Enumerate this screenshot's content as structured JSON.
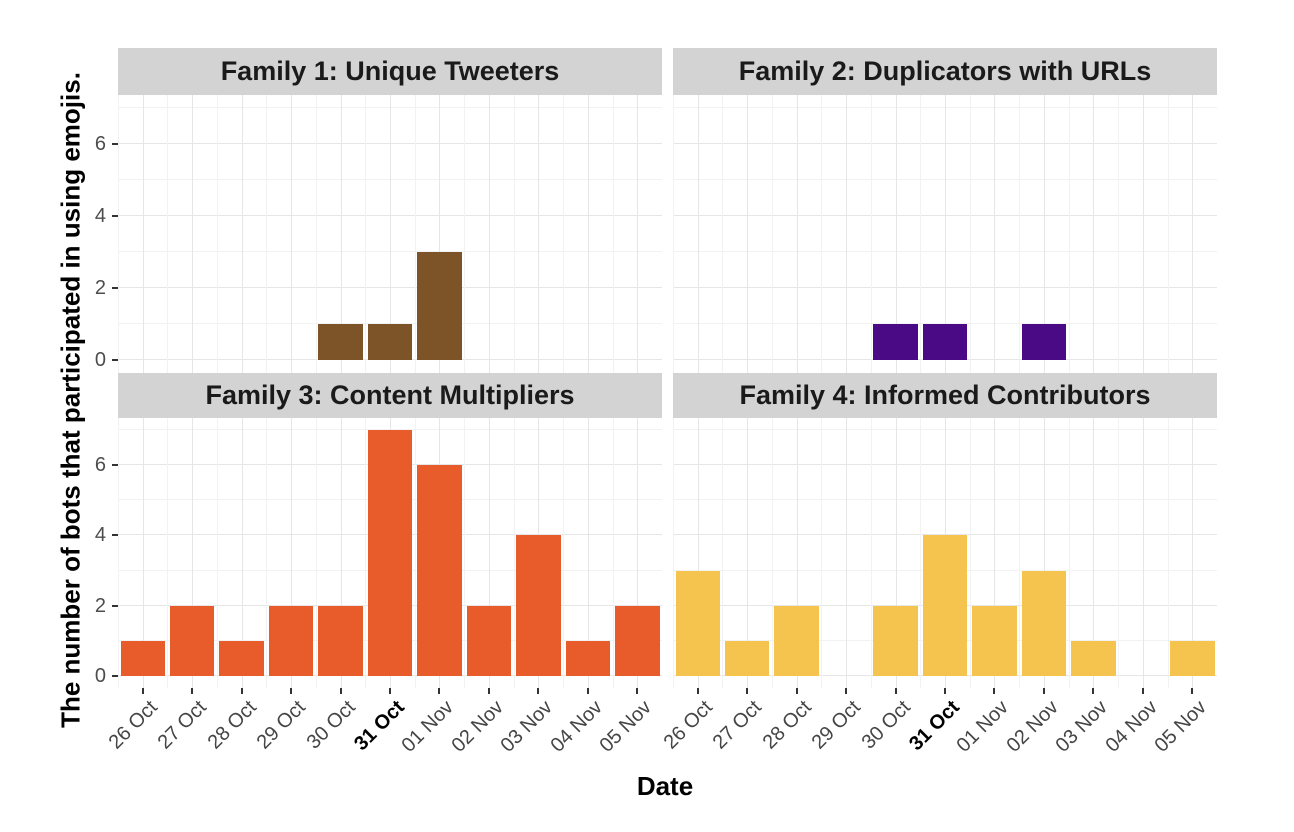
{
  "chart_data": {
    "type": "bar",
    "facet_layout": "2x2",
    "title": "",
    "xlabel": "Date",
    "ylabel": "The number of bots that participated in using emojis.",
    "categories": [
      "26 Oct",
      "27 Oct",
      "28 Oct",
      "29 Oct",
      "30 Oct",
      "31 Oct",
      "01 Nov",
      "02 Nov",
      "03 Nov",
      "04 Nov",
      "05 Nov"
    ],
    "bold_category": "31 Oct",
    "series": [
      {
        "name": "Family 1: Unique Tweeters",
        "color": "#7C5428",
        "values": [
          0,
          0,
          0,
          0,
          1,
          1,
          3,
          0,
          0,
          0,
          0
        ]
      },
      {
        "name": "Family 2: Duplicators with URLs",
        "color": "#4A0A86",
        "values": [
          0,
          0,
          0,
          0,
          1,
          1,
          0,
          1,
          0,
          0,
          0
        ]
      },
      {
        "name": "Family 3: Content Multipliers",
        "color": "#E85C2B",
        "values": [
          1,
          2,
          1,
          2,
          2,
          7,
          6,
          2,
          4,
          1,
          2
        ]
      },
      {
        "name": "Family 4: Informed Contributors",
        "color": "#F4C44F",
        "values": [
          3,
          1,
          2,
          0,
          2,
          4,
          2,
          3,
          1,
          0,
          1
        ]
      }
    ],
    "ylim": [
      0,
      7
    ],
    "yticks": [
      0,
      2,
      4,
      6
    ],
    "ytick_labels": [
      "0",
      "2",
      "4",
      "6"
    ],
    "grid": "major and minor light-gray gridlines on white panels",
    "legend": "none",
    "styles": {
      "strip_bg": "#D3D3D3",
      "strip_text_color": "#1A1A1A",
      "grid_major": "#E6E6E6",
      "grid_minor": "#F2F2F2",
      "y_tick_text_color": "#4D4D4D",
      "x_tick_text_color": "#454545",
      "axis_tick_mark_color": "#333333"
    }
  }
}
